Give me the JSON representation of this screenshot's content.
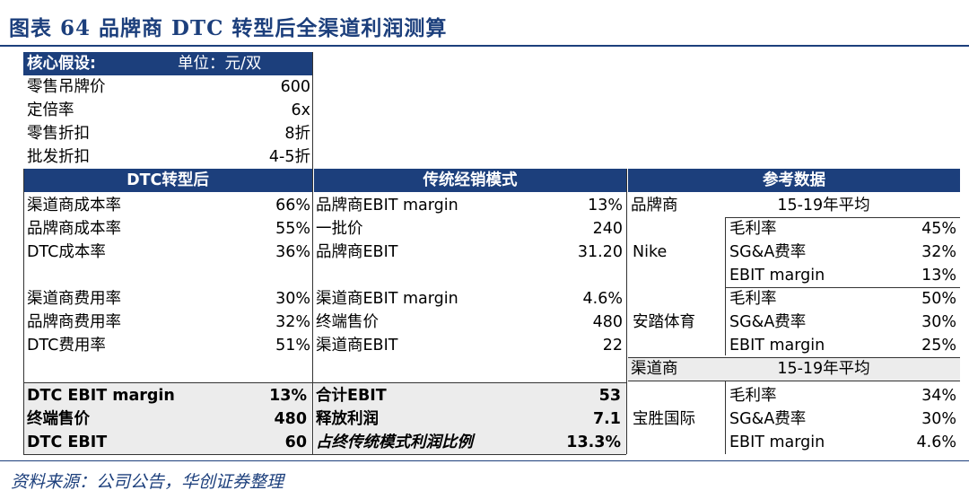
{
  "title": "图表 64   品牌商 DTC 转型后全渠道利润测算",
  "source": "资料来源：公司公告，华创证券整理",
  "assumptions": {
    "header_label": "核心假设:",
    "header_unit": "单位：元/双",
    "rows": [
      {
        "label": "零售吊牌价",
        "value": "600"
      },
      {
        "label": "定倍率",
        "value": "6x"
      },
      {
        "label": "零售折扣",
        "value": "8折"
      },
      {
        "label": "批发折扣",
        "value": "4-5折"
      }
    ]
  },
  "dtc": {
    "header": "DTC转型后",
    "rows": [
      {
        "label": "渠道商成本率",
        "value": "66%"
      },
      {
        "label": "品牌商成本率",
        "value": "55%"
      },
      {
        "label": "DTC成本率",
        "value": "36%"
      },
      {
        "label": "渠道商费用率",
        "value": "30%"
      },
      {
        "label": "品牌商费用率",
        "value": "32%"
      },
      {
        "label": "DTC费用率",
        "value": "51%"
      }
    ],
    "totals": [
      {
        "label": "DTC EBIT margin",
        "value": "13%"
      },
      {
        "label": "终端售价",
        "value": "480"
      },
      {
        "label": "DTC EBIT",
        "value": "60"
      }
    ]
  },
  "traditional": {
    "header": "传统经销模式",
    "rows": [
      {
        "label": "品牌商EBIT margin",
        "value": "13%"
      },
      {
        "label": "一批价",
        "value": "240"
      },
      {
        "label": "品牌商EBIT",
        "value": "31.20"
      },
      {
        "label": "渠道商EBIT margin",
        "value": "4.6%"
      },
      {
        "label": "终端售价",
        "value": "480"
      },
      {
        "label": "渠道商EBIT",
        "value": "22"
      }
    ],
    "totals": [
      {
        "label": "合计EBIT",
        "value": "53"
      },
      {
        "label": "释放利润",
        "value": "7.1"
      },
      {
        "label": "占终传统模式利润比例",
        "value": "13.3%"
      }
    ]
  },
  "reference": {
    "header": "参考数据",
    "brand_label": "品牌商",
    "brand_period": "15-19年平均",
    "channel_label": "渠道商",
    "channel_period": "15-19年平均",
    "groups": [
      {
        "company": "Nike",
        "rows": [
          {
            "metric": "毛利率",
            "value": "45%"
          },
          {
            "metric": "SG&A费率",
            "value": "32%"
          },
          {
            "metric": "EBIT margin",
            "value": "13%"
          }
        ]
      },
      {
        "company": "安踏体育",
        "rows": [
          {
            "metric": "毛利率",
            "value": "50%"
          },
          {
            "metric": "SG&A费率",
            "value": "30%"
          },
          {
            "metric": "EBIT margin",
            "value": "25%"
          }
        ]
      },
      {
        "company": "宝胜国际",
        "rows": [
          {
            "metric": "毛利率",
            "value": "34%"
          },
          {
            "metric": "SG&A费率",
            "value": "30%"
          },
          {
            "metric": "EBIT margin",
            "value": "4.6%"
          }
        ]
      }
    ]
  },
  "colors": {
    "accent": "#1c3f7c",
    "total_bg": "#ececec"
  }
}
